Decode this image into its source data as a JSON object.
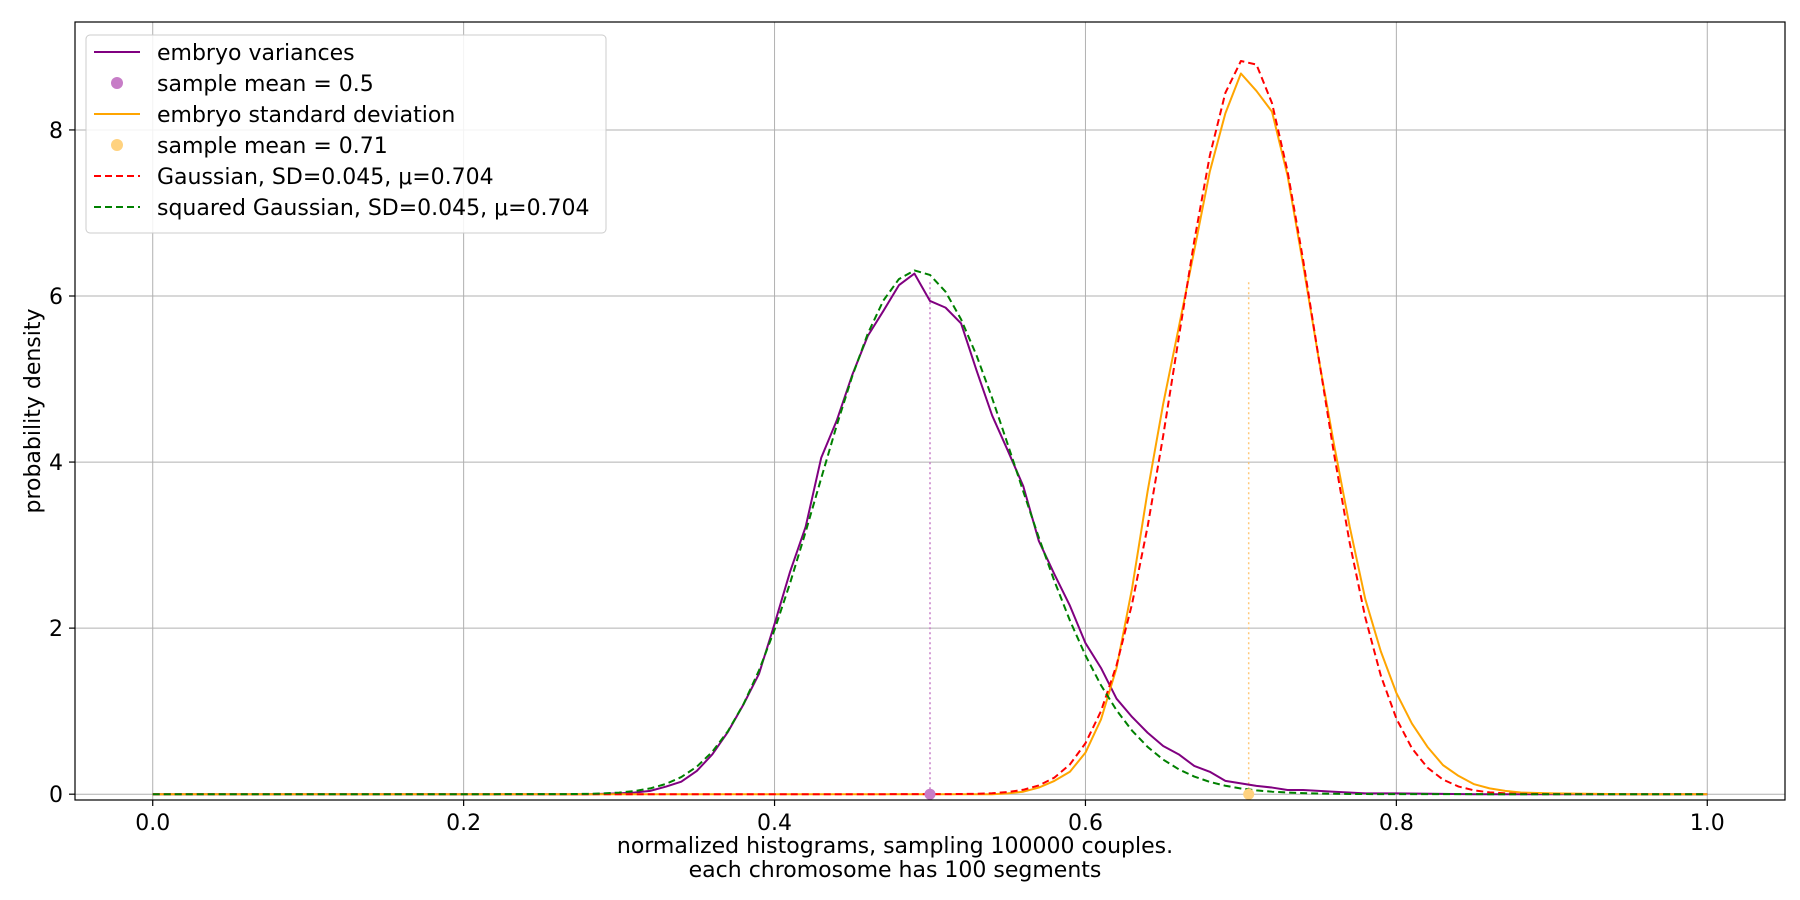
{
  "chart_data": {
    "type": "line",
    "xlabel": [
      "normalized histograms, sampling 100000 couples.",
      "each chromosome has 100 segments"
    ],
    "ylabel": "probability density",
    "xlim": [
      -0.05,
      1.05
    ],
    "ylim": [
      -0.07,
      9.3
    ],
    "x_ticks": [
      0.0,
      0.2,
      0.4,
      0.6,
      0.8,
      1.0
    ],
    "x_tick_labels": [
      "0.0",
      "0.2",
      "0.4",
      "0.6",
      "0.8",
      "1.0"
    ],
    "y_ticks": [
      0,
      2,
      4,
      6,
      8
    ],
    "y_tick_labels": [
      "0",
      "2",
      "4",
      "6",
      "8"
    ],
    "grid": true,
    "legend_position": "top-left",
    "legend": [
      "embryo variances",
      "sample mean = 0.5",
      "embryo standard deviation",
      "sample mean = 0.71",
      "Gaussian, SD=0.045, μ=0.704",
      "squared Gaussian, SD=0.045, μ=0.704"
    ],
    "series": [
      {
        "name": "embryo variances",
        "color": "#800080",
        "style": "solid",
        "points": [
          [
            0.0,
            0.0
          ],
          [
            0.28,
            0.0
          ],
          [
            0.3,
            0.01
          ],
          [
            0.31,
            0.02
          ],
          [
            0.32,
            0.04
          ],
          [
            0.33,
            0.09
          ],
          [
            0.34,
            0.15
          ],
          [
            0.35,
            0.28
          ],
          [
            0.36,
            0.48
          ],
          [
            0.37,
            0.75
          ],
          [
            0.38,
            1.08
          ],
          [
            0.39,
            1.45
          ],
          [
            0.4,
            2.05
          ],
          [
            0.41,
            2.68
          ],
          [
            0.42,
            3.22
          ],
          [
            0.43,
            4.05
          ],
          [
            0.44,
            4.5
          ],
          [
            0.45,
            5.05
          ],
          [
            0.46,
            5.52
          ],
          [
            0.47,
            5.82
          ],
          [
            0.48,
            6.13
          ],
          [
            0.49,
            6.27
          ],
          [
            0.5,
            5.94
          ],
          [
            0.51,
            5.86
          ],
          [
            0.52,
            5.67
          ],
          [
            0.53,
            5.1
          ],
          [
            0.54,
            4.56
          ],
          [
            0.55,
            4.14
          ],
          [
            0.56,
            3.71
          ],
          [
            0.57,
            3.05
          ],
          [
            0.58,
            2.65
          ],
          [
            0.59,
            2.27
          ],
          [
            0.6,
            1.82
          ],
          [
            0.61,
            1.52
          ],
          [
            0.62,
            1.15
          ],
          [
            0.63,
            0.93
          ],
          [
            0.64,
            0.74
          ],
          [
            0.65,
            0.58
          ],
          [
            0.66,
            0.48
          ],
          [
            0.67,
            0.34
          ],
          [
            0.68,
            0.27
          ],
          [
            0.69,
            0.16
          ],
          [
            0.7,
            0.13
          ],
          [
            0.71,
            0.1
          ],
          [
            0.72,
            0.08
          ],
          [
            0.73,
            0.05
          ],
          [
            0.74,
            0.05
          ],
          [
            0.75,
            0.04
          ],
          [
            0.76,
            0.03
          ],
          [
            0.78,
            0.01
          ],
          [
            0.8,
            0.01
          ],
          [
            0.85,
            0.0
          ],
          [
            1.0,
            0.0
          ]
        ]
      },
      {
        "name": "embryo standard deviation",
        "color": "#ffa500",
        "style": "solid",
        "points": [
          [
            0.0,
            0.0
          ],
          [
            0.54,
            0.0
          ],
          [
            0.55,
            0.01
          ],
          [
            0.56,
            0.03
          ],
          [
            0.57,
            0.08
          ],
          [
            0.58,
            0.16
          ],
          [
            0.59,
            0.27
          ],
          [
            0.6,
            0.5
          ],
          [
            0.61,
            0.9
          ],
          [
            0.62,
            1.52
          ],
          [
            0.63,
            2.48
          ],
          [
            0.64,
            3.65
          ],
          [
            0.65,
            4.7
          ],
          [
            0.66,
            5.62
          ],
          [
            0.67,
            6.55
          ],
          [
            0.68,
            7.5
          ],
          [
            0.69,
            8.2
          ],
          [
            0.7,
            8.68
          ],
          [
            0.71,
            8.47
          ],
          [
            0.72,
            8.22
          ],
          [
            0.73,
            7.45
          ],
          [
            0.74,
            6.38
          ],
          [
            0.75,
            5.25
          ],
          [
            0.76,
            4.2
          ],
          [
            0.77,
            3.22
          ],
          [
            0.78,
            2.35
          ],
          [
            0.79,
            1.72
          ],
          [
            0.8,
            1.22
          ],
          [
            0.81,
            0.85
          ],
          [
            0.82,
            0.57
          ],
          [
            0.83,
            0.35
          ],
          [
            0.84,
            0.22
          ],
          [
            0.85,
            0.12
          ],
          [
            0.86,
            0.07
          ],
          [
            0.87,
            0.04
          ],
          [
            0.88,
            0.02
          ],
          [
            0.9,
            0.01
          ],
          [
            0.95,
            0.0
          ],
          [
            1.0,
            0.0
          ]
        ]
      },
      {
        "name": "Gaussian, SD=0.045, μ=0.704",
        "color": "#ff0000",
        "style": "dashed",
        "gaussian": {
          "mu": 0.704,
          "sd": 0.045,
          "x_from": 0.0,
          "x_to": 1.0,
          "step": 0.01
        }
      },
      {
        "name": "squared Gaussian, SD=0.045, μ=0.704",
        "color": "#008000",
        "style": "dashed",
        "squared_gaussian": {
          "mu": 0.704,
          "sd": 0.045,
          "x_from": 0.0,
          "x_to": 1.0,
          "step": 0.01
        }
      }
    ],
    "mean_markers": [
      {
        "name": "sample mean = 0.5",
        "x": 0.5,
        "y": 0.0,
        "color": "#c77dc7",
        "line_color": "#c77dc7"
      },
      {
        "name": "sample mean = 0.71",
        "x": 0.705,
        "y": 0.0,
        "color": "#ffd27f",
        "line_color": "#ffc87a"
      }
    ]
  }
}
